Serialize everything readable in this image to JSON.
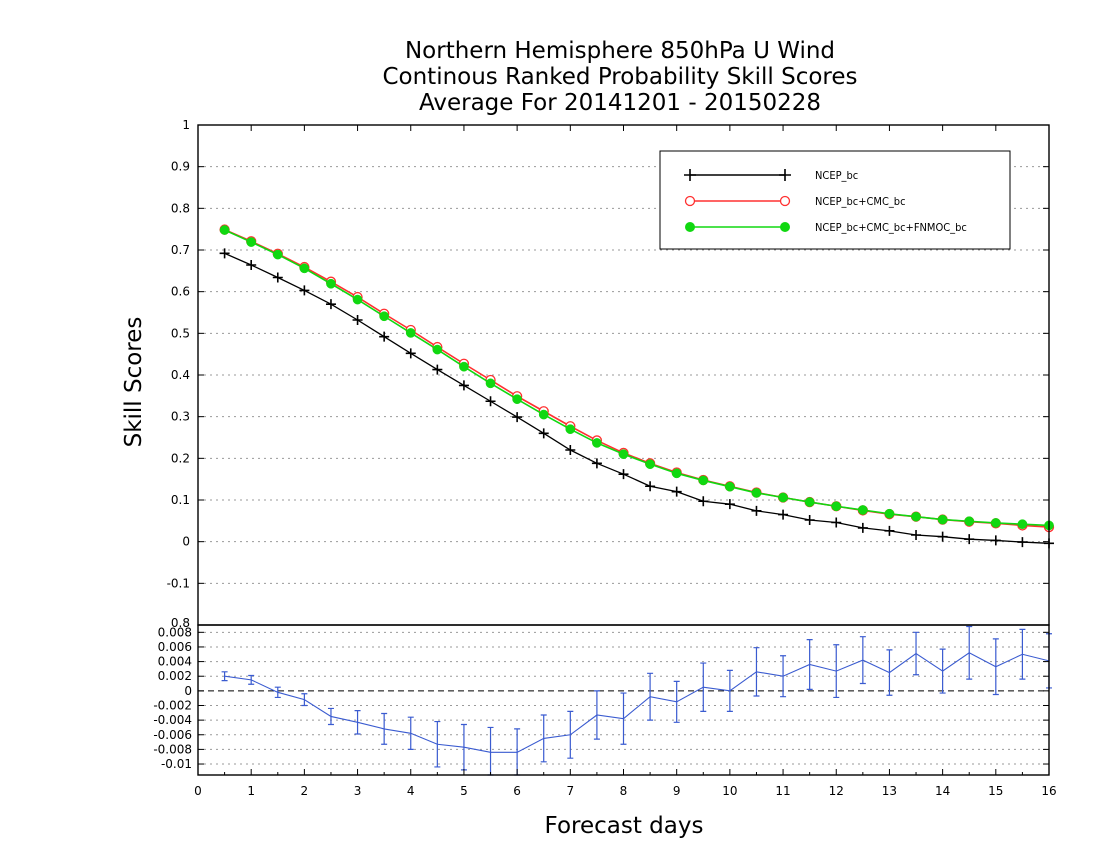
{
  "chart_data": [
    {
      "type": "line",
      "title": [
        "Northern Hemisphere 850hPa U Wind",
        "Continous Ranked Probability Skill Scores",
        "Average For 20141201 - 20150228"
      ],
      "ylabel": "Skill Scores",
      "ylim": [
        -0.2,
        1
      ],
      "yticks": [
        "-0.1",
        "0",
        "0.1",
        "0.2",
        "0.3",
        "0.4",
        "0.5",
        "0.6",
        "0.7",
        "0.8",
        "0.9",
        "1"
      ],
      "yticks_values": [
        -0.1,
        0,
        0.1,
        0.2,
        0.3,
        0.4,
        0.5,
        0.6,
        0.7,
        0.8,
        0.9,
        1
      ],
      "xlim": [
        0,
        16
      ],
      "grid": true,
      "legend_position": "top-right",
      "x": [
        0.5,
        1,
        1.5,
        2,
        2.5,
        3,
        3.5,
        4,
        4.5,
        5,
        5.5,
        6,
        6.5,
        7,
        7.5,
        8,
        8.5,
        9,
        9.5,
        10,
        10.5,
        11,
        11.5,
        12,
        12.5,
        13,
        13.5,
        14,
        14.5,
        15,
        15.5,
        16
      ],
      "series": [
        {
          "name": "NCEP_bc",
          "color": "#000000",
          "marker": "plus",
          "values": [
            0.692,
            0.664,
            0.634,
            0.603,
            0.57,
            0.532,
            0.492,
            0.452,
            0.413,
            0.375,
            0.337,
            0.299,
            0.26,
            0.22,
            0.188,
            0.162,
            0.133,
            0.12,
            0.097,
            0.09,
            0.074,
            0.065,
            0.052,
            0.046,
            0.033,
            0.026,
            0.016,
            0.012,
            0.006,
            0.003,
            -0.001,
            -0.004
          ]
        },
        {
          "name": "NCEP_bc+CMC_bc",
          "color": "#ff3030",
          "marker": "open-circle",
          "values": [
            0.749,
            0.721,
            0.691,
            0.659,
            0.624,
            0.587,
            0.547,
            0.508,
            0.467,
            0.427,
            0.388,
            0.349,
            0.313,
            0.277,
            0.243,
            0.213,
            0.188,
            0.166,
            0.148,
            0.133,
            0.118,
            0.106,
            0.095,
            0.085,
            0.075,
            0.066,
            0.06,
            0.053,
            0.048,
            0.044,
            0.039,
            0.035
          ]
        },
        {
          "name": "NCEP_bc+CMC_bc+FNMOC_bc",
          "color": "#10d810",
          "marker": "filled-circle",
          "values": [
            0.748,
            0.719,
            0.689,
            0.656,
            0.619,
            0.581,
            0.541,
            0.501,
            0.461,
            0.42,
            0.38,
            0.342,
            0.305,
            0.27,
            0.237,
            0.21,
            0.186,
            0.164,
            0.147,
            0.132,
            0.117,
            0.106,
            0.095,
            0.085,
            0.076,
            0.067,
            0.06,
            0.053,
            0.049,
            0.045,
            0.042,
            0.039
          ]
        }
      ]
    },
    {
      "type": "line",
      "xlabel": "Forecast days",
      "xticks": [
        "0",
        "1",
        "2",
        "3",
        "4",
        "5",
        "6",
        "7",
        "8",
        "9",
        "10",
        "11",
        "12",
        "13",
        "14",
        "15",
        "16"
      ],
      "xticks_values": [
        0,
        1,
        2,
        3,
        4,
        5,
        6,
        7,
        8,
        9,
        10,
        11,
        12,
        13,
        14,
        15,
        16
      ],
      "ylim": [
        -0.0115,
        0.009
      ],
      "yticks": [
        "-0.01",
        "-0.008",
        "-0.006",
        "-0.004",
        "-0.002",
        "0",
        "0.002",
        "0.004",
        "0.006",
        "0.008"
      ],
      "yticks_values": [
        -0.01,
        -0.008,
        -0.006,
        -0.004,
        -0.002,
        0,
        0.002,
        0.004,
        0.006,
        0.008
      ],
      "top_clipped_label": "0.8",
      "grid": true,
      "reference_line": 0,
      "x": [
        0.5,
        1,
        1.5,
        2,
        2.5,
        3,
        3.5,
        4,
        4.5,
        5,
        5.5,
        6,
        6.5,
        7,
        7.5,
        8,
        8.5,
        9,
        9.5,
        10,
        10.5,
        11,
        11.5,
        12,
        12.5,
        13,
        13.5,
        14,
        14.5,
        15,
        15.5,
        16
      ],
      "series": [
        {
          "name": "",
          "color": "#3a5bd0",
          "marker": "error-bar",
          "values": [
            0.002,
            0.0015,
            -0.0002,
            -0.0012,
            -0.0035,
            -0.0043,
            -0.0052,
            -0.0058,
            -0.0073,
            -0.0077,
            -0.0084,
            -0.0084,
            -0.0065,
            -0.006,
            -0.0033,
            -0.0038,
            -0.0008,
            -0.0015,
            0.0005,
            0,
            0.0026,
            0.002,
            0.0036,
            0.0027,
            0.0042,
            0.0025,
            0.0051,
            0.0027,
            0.0052,
            0.0033,
            0.005,
            0.0041
          ],
          "error": [
            0.0006,
            0.0006,
            0.0007,
            0.0008,
            0.0011,
            0.0016,
            0.0021,
            0.0022,
            0.0031,
            0.0031,
            0.0034,
            0.0032,
            0.0032,
            0.0032,
            0.0033,
            0.0035,
            0.0032,
            0.0028,
            0.0033,
            0.0028,
            0.0033,
            0.0028,
            0.0034,
            0.0036,
            0.0032,
            0.0031,
            0.0029,
            0.003,
            0.0036,
            0.0038,
            0.0034,
            0.0037
          ]
        }
      ]
    }
  ]
}
